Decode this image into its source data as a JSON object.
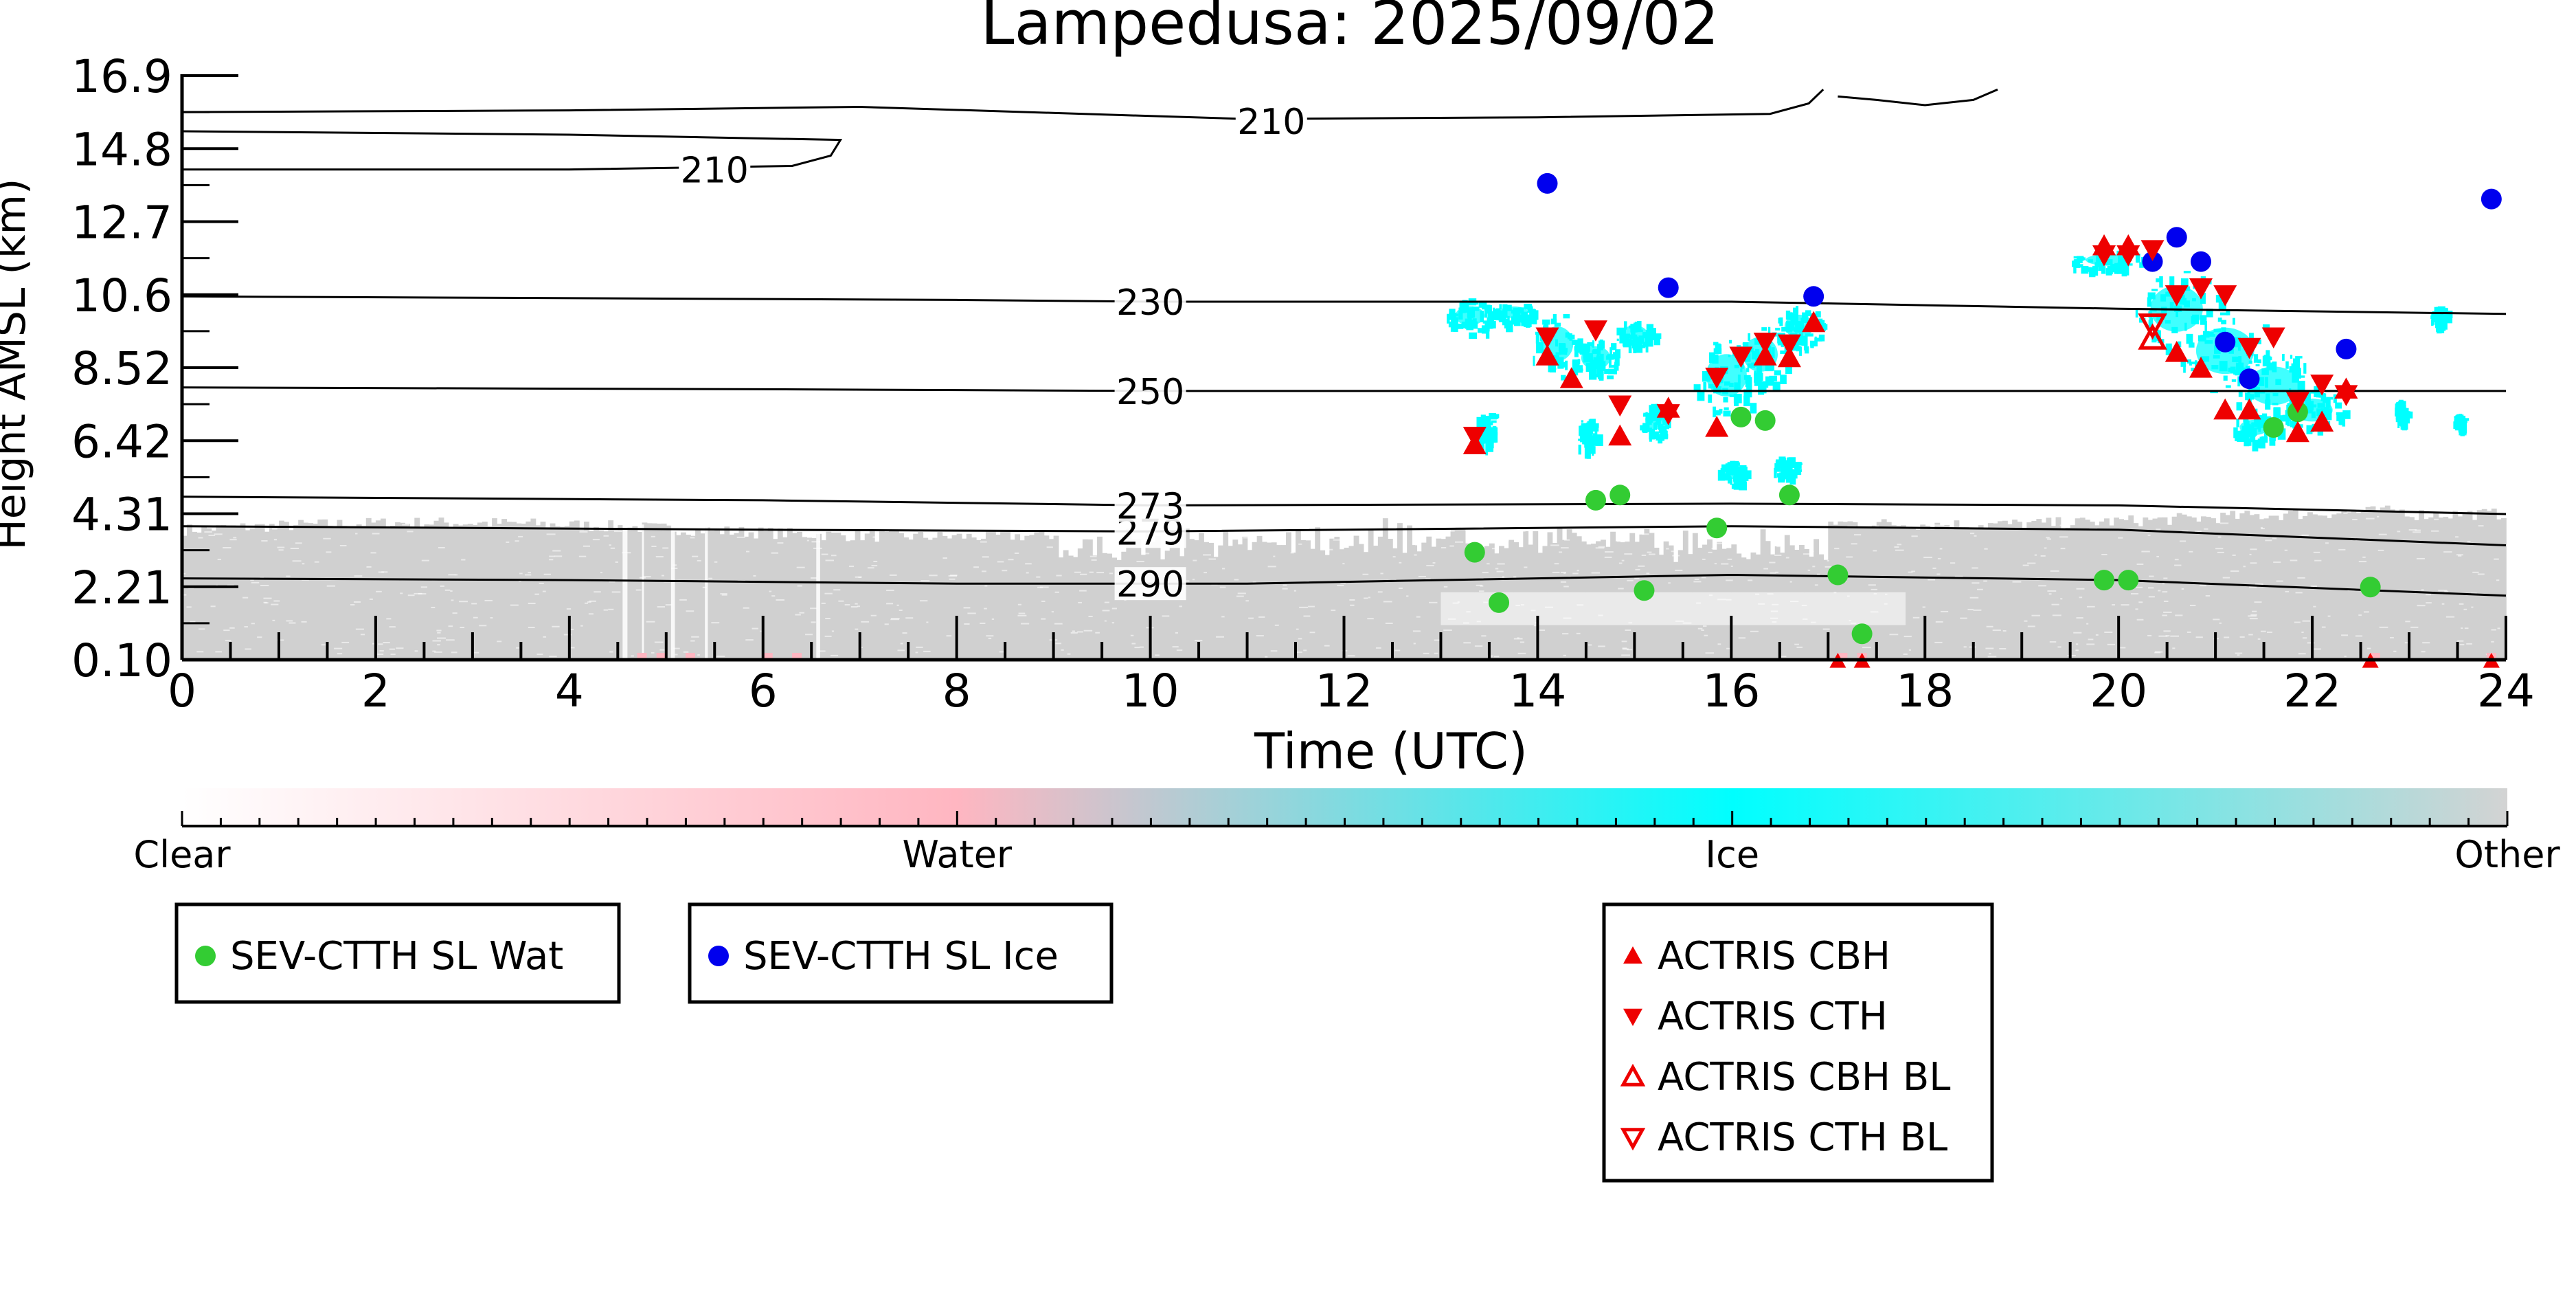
{
  "chart_data": {
    "type": "scatter",
    "title": "Lampedusa: 2025/09/02",
    "xlabel": "Time (UTC)",
    "ylabel": "Height AMSL (km)",
    "xlim": [
      0,
      24
    ],
    "ylim": [
      0.1,
      16.9
    ],
    "x_ticks": [
      0,
      2,
      4,
      6,
      8,
      10,
      12,
      14,
      16,
      18,
      20,
      22,
      24
    ],
    "y_ticks": [
      "0.10",
      "2.21",
      "4.31",
      "6.42",
      "8.52",
      "10.6",
      "12.7",
      "14.8",
      "16.9"
    ],
    "y_tick_values": [
      0.1,
      2.21,
      4.31,
      6.42,
      8.52,
      10.6,
      12.7,
      14.8,
      16.9
    ],
    "grid": false,
    "colorbar": {
      "labels": [
        "Clear",
        "Water",
        "Ice",
        "Other"
      ],
      "colors": [
        "#ffffff",
        "#ffb6c1",
        "#00ffff",
        "#d3d3d3"
      ]
    },
    "contours": [
      {
        "label": "290",
        "points": [
          [
            0,
            2.45
          ],
          [
            4,
            2.4
          ],
          [
            8,
            2.3
          ],
          [
            11,
            2.3
          ],
          [
            16,
            2.55
          ],
          [
            20,
            2.4
          ],
          [
            24,
            1.95
          ]
        ]
      },
      {
        "label": "279",
        "points": [
          [
            0,
            3.95
          ],
          [
            6,
            3.85
          ],
          [
            10,
            3.8
          ],
          [
            16,
            3.95
          ],
          [
            20,
            3.85
          ],
          [
            24,
            3.4
          ]
        ]
      },
      {
        "label": "273",
        "points": [
          [
            0,
            4.8
          ],
          [
            6,
            4.7
          ],
          [
            10,
            4.55
          ],
          [
            16,
            4.6
          ],
          [
            20,
            4.55
          ],
          [
            24,
            4.3
          ]
        ]
      },
      {
        "label": "250",
        "points": [
          [
            0,
            7.95
          ],
          [
            6,
            7.9
          ],
          [
            10,
            7.85
          ],
          [
            16,
            7.85
          ],
          [
            20,
            7.85
          ],
          [
            24,
            7.85
          ]
        ]
      },
      {
        "label": "230",
        "points": [
          [
            0,
            10.55
          ],
          [
            8,
            10.45
          ],
          [
            10,
            10.4
          ],
          [
            16,
            10.4
          ],
          [
            20,
            10.2
          ],
          [
            24,
            10.05
          ]
        ]
      },
      {
        "label": "210",
        "points": [
          [
            0,
            15.85
          ],
          [
            4,
            15.9
          ],
          [
            7,
            16.0
          ],
          [
            11,
            15.65
          ],
          [
            14,
            15.7
          ],
          [
            16.4,
            15.8
          ],
          [
            16.8,
            16.1
          ],
          [
            16.95,
            16.5
          ]
        ]
      }
    ],
    "series": [
      {
        "name": "SEV-CTTH SL Wat",
        "color": "#33cc33",
        "marker": "circle",
        "points": [
          [
            13.35,
            3.2
          ],
          [
            13.6,
            1.75
          ],
          [
            14.6,
            4.7
          ],
          [
            14.85,
            4.85
          ],
          [
            15.1,
            2.1
          ],
          [
            15.85,
            3.9
          ],
          [
            16.1,
            7.1
          ],
          [
            16.35,
            7.0
          ],
          [
            16.6,
            4.85
          ],
          [
            17.1,
            2.55
          ],
          [
            17.35,
            0.85
          ],
          [
            19.85,
            2.4
          ],
          [
            20.1,
            2.4
          ],
          [
            21.6,
            6.8
          ],
          [
            21.85,
            7.25
          ],
          [
            22.6,
            2.2
          ]
        ]
      },
      {
        "name": "SEV-CTTH SL Ice",
        "color": "#0000ee",
        "marker": "circle",
        "points": [
          [
            14.1,
            13.8
          ],
          [
            15.35,
            10.8
          ],
          [
            16.85,
            10.55
          ],
          [
            20.35,
            11.55
          ],
          [
            20.6,
            12.25
          ],
          [
            20.85,
            11.55
          ],
          [
            21.1,
            9.25
          ],
          [
            21.35,
            8.2
          ],
          [
            22.35,
            9.05
          ],
          [
            23.85,
            13.35
          ]
        ]
      },
      {
        "name": "ACTRIS CBH",
        "color": "#ee0000",
        "marker": "triangle-up",
        "points": [
          [
            13.35,
            6.3
          ],
          [
            14.1,
            8.85
          ],
          [
            14.35,
            8.2
          ],
          [
            14.85,
            6.55
          ],
          [
            15.35,
            7.35
          ],
          [
            15.85,
            6.8
          ],
          [
            16.35,
            8.85
          ],
          [
            16.6,
            8.8
          ],
          [
            16.85,
            9.8
          ],
          [
            19.85,
            12.0
          ],
          [
            20.1,
            12.0
          ],
          [
            20.6,
            8.95
          ],
          [
            20.85,
            8.5
          ],
          [
            21.1,
            7.3
          ],
          [
            21.35,
            7.3
          ],
          [
            21.85,
            6.65
          ],
          [
            22.1,
            6.95
          ],
          [
            22.35,
            7.9
          ]
        ]
      },
      {
        "name": "ACTRIS CTH",
        "color": "#ee0000",
        "marker": "triangle-down",
        "points": [
          [
            13.35,
            6.55
          ],
          [
            14.1,
            9.4
          ],
          [
            14.6,
            9.6
          ],
          [
            14.85,
            7.45
          ],
          [
            15.35,
            7.2
          ],
          [
            15.85,
            8.25
          ],
          [
            16.1,
            8.85
          ],
          [
            16.35,
            9.25
          ],
          [
            16.6,
            9.2
          ],
          [
            19.85,
            11.75
          ],
          [
            20.1,
            11.75
          ],
          [
            20.35,
            11.9
          ],
          [
            20.6,
            10.6
          ],
          [
            20.85,
            10.8
          ],
          [
            21.1,
            10.6
          ],
          [
            21.35,
            9.1
          ],
          [
            21.6,
            9.4
          ],
          [
            21.85,
            7.55
          ],
          [
            22.1,
            8.05
          ],
          [
            22.35,
            7.75
          ]
        ]
      },
      {
        "name": "ACTRIS CBH BL",
        "color": "#ee0000",
        "marker": "triangle-up-open",
        "points": [
          [
            20.35,
            9.35
          ]
        ]
      },
      {
        "name": "ACTRIS CTH BL",
        "color": "#ee0000",
        "marker": "triangle-down-open",
        "points": [
          [
            20.35,
            9.75
          ]
        ]
      }
    ]
  }
}
